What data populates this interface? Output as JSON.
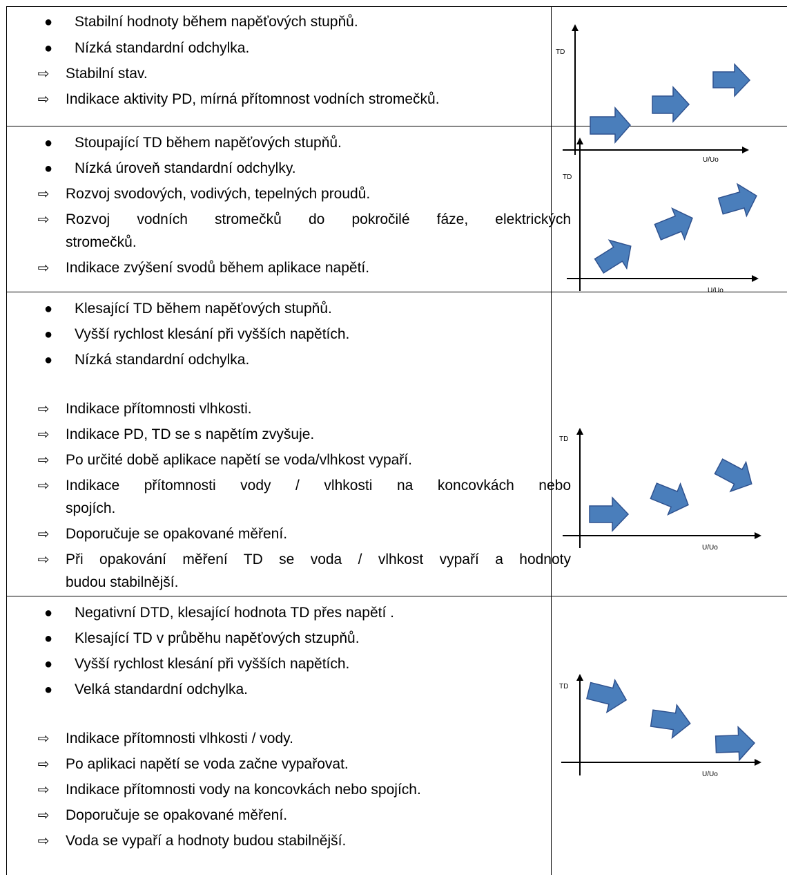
{
  "rows": [
    {
      "bullets": [
        "Stabilní hodnoty během napěťových stupňů.",
        "Nízká standardní odchylka."
      ],
      "conclusions": [
        "Stabilní stav.",
        "Indikace aktivity PD, mírná přítomnost vodních stromečků."
      ],
      "chart": {
        "y_label": "TD",
        "x_label": "U/Uo"
      }
    },
    {
      "bullets": [
        "Stoupající TD během napěťových stupňů.",
        "Nízká úroveň standardní odchylky."
      ],
      "conclusions": [
        "Rozvoj svodových, vodivých, tepelných proudů.",
        "Rozvoj vodních stromečků do pokročilé fáze, elektrických",
        "stromečků.",
        "Indikace zvýšení svodů během aplikace napětí."
      ],
      "chart": {
        "y_label": "TD",
        "x_label": "U/Uo"
      }
    },
    {
      "bullets": [
        "Klesající TD během napěťových stupňů.",
        "Vyšší rychlost klesání při vyšších napětích.",
        "Nízká standardní odchylka."
      ],
      "conclusions": [
        "Indikace přítomnosti vlhkosti.",
        "Indikace PD, TD se s napětím zvyšuje.",
        "Po určité době aplikace napětí se voda/vlhkost vypaří.",
        "Indikace přítomnosti vody / vlhkosti na koncovkách nebo",
        "spojích.",
        "Doporučuje se opakované měření.",
        "Při opakování měření TD se voda / vlhkost vypaří a hodnoty",
        "budou stabilnější."
      ],
      "chart": {
        "y_label": "TD",
        "x_label": "U/Uo"
      }
    },
    {
      "bullets": [
        "Negativní DTD, klesající hodnota TD přes napětí .",
        "Klesající TD v průběhu napěťových stzupňů.",
        "Vyšší rychlost klesání při vyšších napětích.",
        "Velká standardní odchylka."
      ],
      "conclusions": [
        "Indikace přítomnosti vlhkosti / vody.",
        "Po aplikaci napětí se voda začne vypařovat.",
        "Indikace přítomnosti vody na koncovkách nebo spojích.",
        "Doporučuje se opakované měření.",
        "Voda se vypaří a hodnoty budou stabilnější."
      ],
      "chart": {
        "y_label": "TD",
        "x_label": "U/Uo"
      }
    }
  ],
  "markers": {
    "bullet": "●",
    "arrow": "⇨"
  },
  "colors": {
    "arrow_fill": "#4a7ebb",
    "arrow_stroke": "#2f528f",
    "line": "#000000"
  }
}
